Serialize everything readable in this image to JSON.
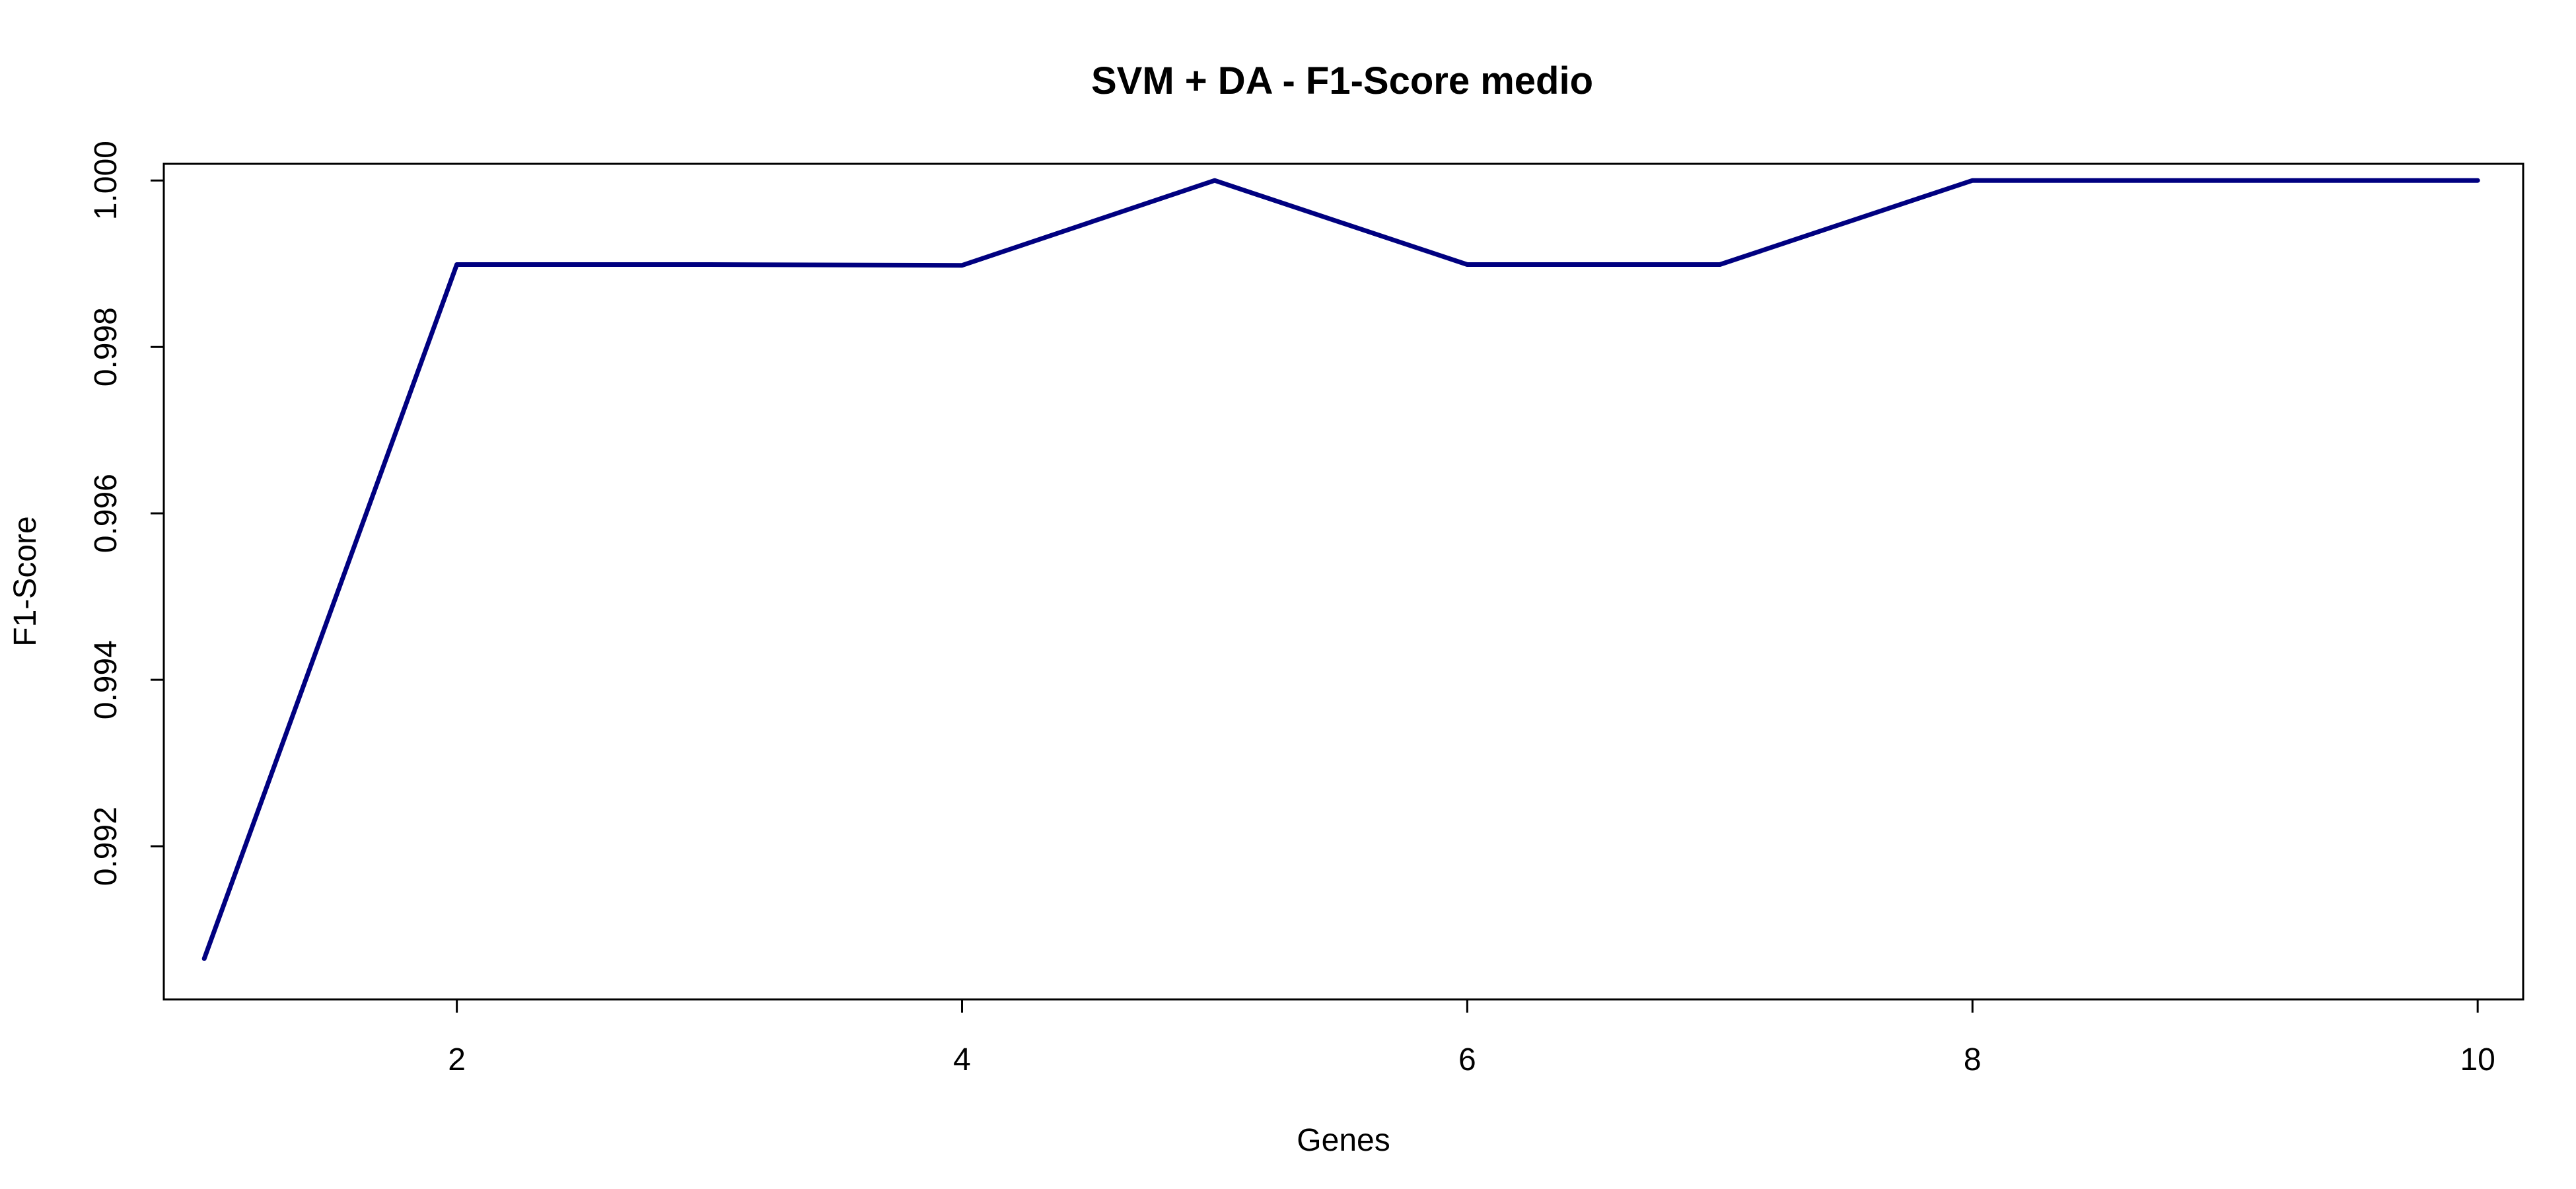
{
  "chart_data": {
    "type": "line",
    "title": "SVM + DA - F1-Score medio",
    "xlabel": "Genes",
    "ylabel": "F1-Score",
    "x": [
      1,
      2,
      3,
      4,
      5,
      6,
      7,
      8,
      9,
      10
    ],
    "series": [
      {
        "values": [
          0.99065,
          0.99899,
          0.99899,
          0.99898,
          1.0,
          0.99899,
          0.99899,
          1.0,
          1.0,
          1.0
        ],
        "color": "#000080"
      }
    ],
    "xlim": [
      0.84,
      10.18
    ],
    "ylim": [
      0.99016,
      1.0002
    ],
    "xticks": [
      2,
      4,
      6,
      8,
      10
    ],
    "xtick_labels": [
      "2",
      "4",
      "6",
      "8",
      "10"
    ],
    "yticks": [
      0.992,
      0.994,
      0.996,
      0.998,
      1.0
    ],
    "ytick_labels": [
      "0.992",
      "0.994",
      "0.996",
      "0.998",
      "1.000"
    ],
    "grid": false,
    "legend": "none"
  }
}
